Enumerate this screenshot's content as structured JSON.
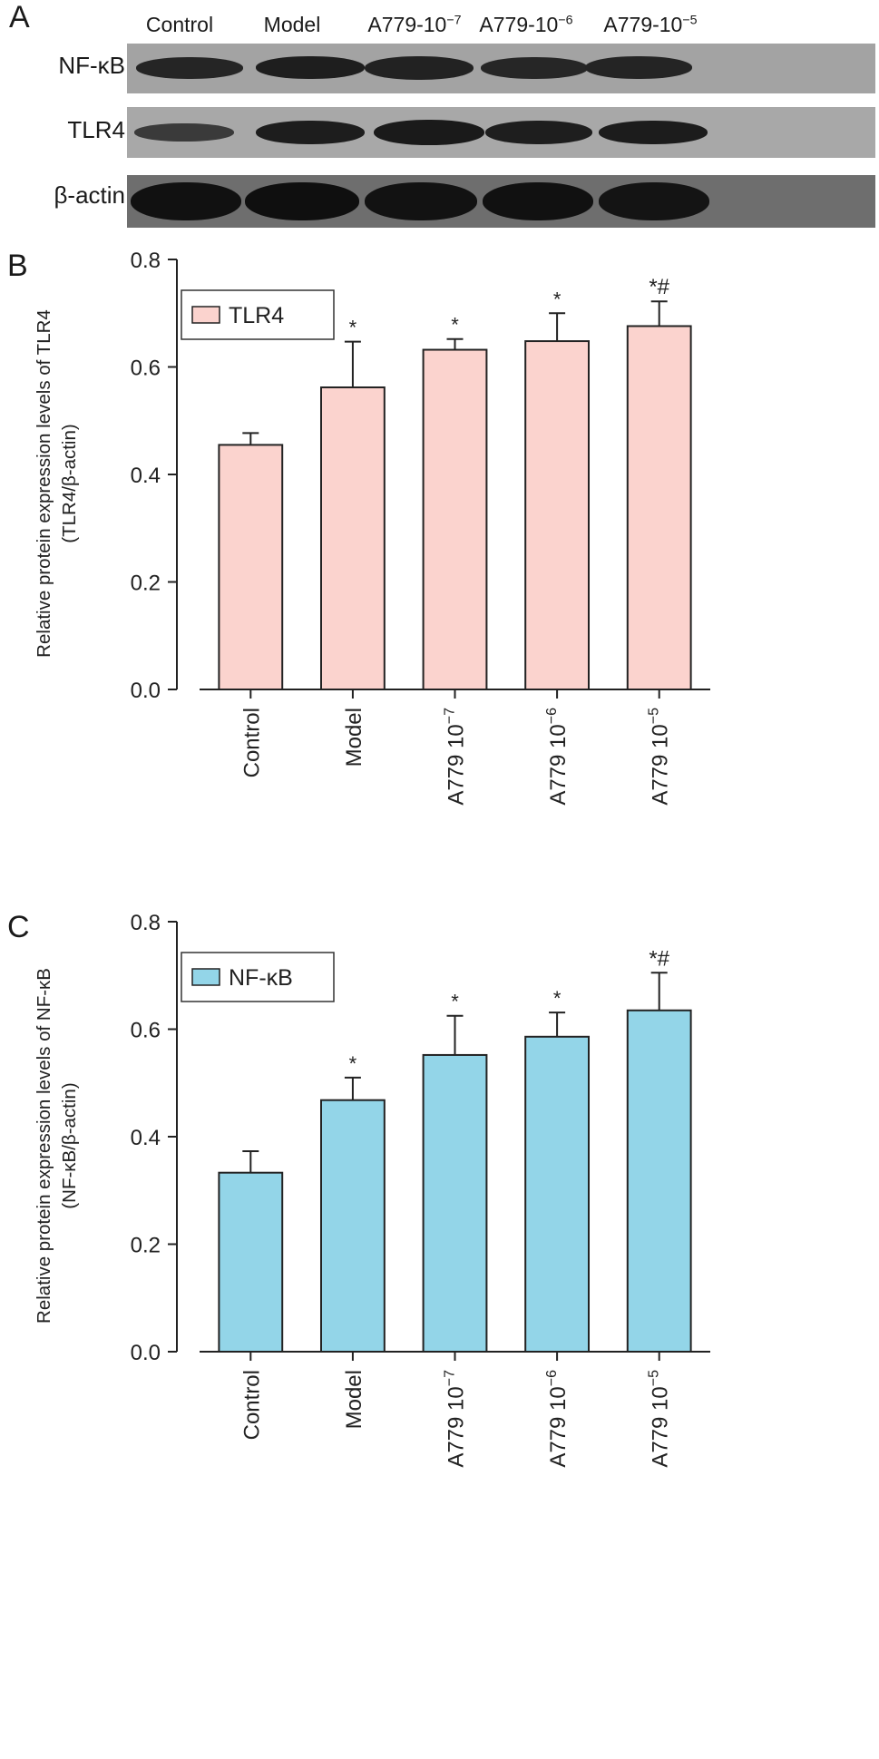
{
  "panelA": {
    "letter": "A",
    "columns": [
      {
        "base": "Control",
        "exp": ""
      },
      {
        "base": "Model",
        "exp": ""
      },
      {
        "base": "A779-10",
        "exp": "−7"
      },
      {
        "base": "A779-10",
        "exp": "−6"
      },
      {
        "base": "A779-10",
        "exp": "−5"
      }
    ],
    "rows": [
      "NF-κB",
      "TLR4",
      "β-actin"
    ]
  },
  "chart_data": [
    {
      "type": "bar",
      "panel": "B",
      "categories": [
        "Control",
        "Model",
        "A779 10",
        "A779 10",
        "A779 10"
      ],
      "category_exponents": [
        "",
        "",
        "−7",
        "−6",
        "−5"
      ],
      "series": [
        {
          "name": "TLR4",
          "values": [
            0.455,
            0.562,
            0.632,
            0.648,
            0.676
          ]
        }
      ],
      "errors": [
        0.022,
        0.085,
        0.02,
        0.052,
        0.046
      ],
      "annotations": [
        "",
        "*",
        "*",
        "*",
        "*#"
      ],
      "ylabel_lines": [
        "Relative protein expression levels of TLR4",
        "(TLR4/β-actin)"
      ],
      "ylim": [
        0,
        0.8
      ],
      "yticks": [
        "0.0",
        "0.2",
        "0.4",
        "0.6",
        "0.8"
      ],
      "bar_color": "#fbd3ce",
      "legend": "top-left"
    },
    {
      "type": "bar",
      "panel": "C",
      "categories": [
        "Control",
        "Model",
        "A779 10",
        "A779 10",
        "A779 10"
      ],
      "category_exponents": [
        "",
        "",
        "−7",
        "−6",
        "−5"
      ],
      "series": [
        {
          "name": "NF-κB",
          "values": [
            0.333,
            0.468,
            0.552,
            0.586,
            0.635
          ]
        }
      ],
      "errors": [
        0.04,
        0.042,
        0.073,
        0.045,
        0.07
      ],
      "annotations": [
        "",
        "*",
        "*",
        "*",
        "*#"
      ],
      "ylabel_lines": [
        "Relative protein expression levels of NF-κB",
        "(NF-κB/β-actin)"
      ],
      "ylim": [
        0,
        0.8
      ],
      "yticks": [
        "0.0",
        "0.2",
        "0.4",
        "0.6",
        "0.8"
      ],
      "bar_color": "#93d5e8",
      "legend": "top-left"
    }
  ]
}
